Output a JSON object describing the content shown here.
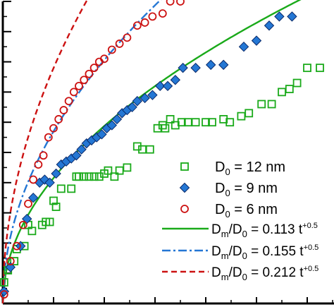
{
  "chart_data": {
    "type": "scatter",
    "title": "",
    "xlabel": "",
    "ylabel": "",
    "xlim": [
      0,
      13
    ],
    "ylim": [
      0,
      1.0
    ],
    "grid": false,
    "legend_position": "bottom-right",
    "x_ticks": [
      0,
      2,
      4,
      6,
      8,
      10,
      12
    ],
    "y_ticks": [
      0,
      0.1,
      0.2,
      0.3,
      0.4,
      0.5,
      0.6,
      0.7,
      0.8,
      0.9,
      1.0
    ],
    "series": [
      {
        "name": "12 nm",
        "kind": "points",
        "marker": "open-square",
        "color": "#1aaa1a",
        "points": [
          [
            0.05,
            0.07
          ],
          [
            0.2,
            0.11
          ],
          [
            0.45,
            0.14
          ],
          [
            0.55,
            0.18
          ],
          [
            0.85,
            0.19
          ],
          [
            1.0,
            0.26
          ],
          [
            1.15,
            0.24
          ],
          [
            1.55,
            0.26
          ],
          [
            1.7,
            0.27
          ],
          [
            1.85,
            0.27
          ],
          [
            2.0,
            0.34
          ],
          [
            2.1,
            0.32
          ],
          [
            2.3,
            0.38
          ],
          [
            2.7,
            0.38
          ],
          [
            2.9,
            0.42
          ],
          [
            3.0,
            0.42
          ],
          [
            3.2,
            0.42
          ],
          [
            3.4,
            0.42
          ],
          [
            3.6,
            0.42
          ],
          [
            3.8,
            0.42
          ],
          [
            4.0,
            0.43
          ],
          [
            4.15,
            0.44
          ],
          [
            4.4,
            0.42
          ],
          [
            4.6,
            0.44
          ],
          [
            4.9,
            0.45
          ],
          [
            5.3,
            0.52
          ],
          [
            5.5,
            0.51
          ],
          [
            5.8,
            0.51
          ],
          [
            6.1,
            0.58
          ],
          [
            6.3,
            0.59
          ],
          [
            6.4,
            0.58
          ],
          [
            6.6,
            0.61
          ],
          [
            6.8,
            0.59
          ],
          [
            7.05,
            0.6
          ],
          [
            7.3,
            0.6
          ],
          [
            7.6,
            0.6
          ],
          [
            8.0,
            0.6
          ],
          [
            8.25,
            0.6
          ],
          [
            8.7,
            0.61
          ],
          [
            8.95,
            0.6
          ],
          [
            9.4,
            0.62
          ],
          [
            9.7,
            0.63
          ],
          [
            10.2,
            0.66
          ],
          [
            10.6,
            0.66
          ],
          [
            11.0,
            0.7
          ],
          [
            11.3,
            0.71
          ],
          [
            11.6,
            0.73
          ],
          [
            12.0,
            0.78
          ],
          [
            12.5,
            0.78
          ]
        ]
      },
      {
        "name": "9 nm",
        "kind": "points",
        "marker": "filled-diamond",
        "color": "#2477d4",
        "points": [
          [
            0.05,
            0.04
          ],
          [
            0.3,
            0.12
          ],
          [
            0.7,
            0.19
          ],
          [
            0.95,
            0.28
          ],
          [
            1.2,
            0.35
          ],
          [
            1.45,
            0.4
          ],
          [
            1.65,
            0.41
          ],
          [
            1.85,
            0.4
          ],
          [
            2.1,
            0.43
          ],
          [
            2.3,
            0.46
          ],
          [
            2.5,
            0.47
          ],
          [
            2.7,
            0.48
          ],
          [
            2.9,
            0.49
          ],
          [
            3.1,
            0.51
          ],
          [
            3.3,
            0.53
          ],
          [
            3.5,
            0.54
          ],
          [
            3.7,
            0.55
          ],
          [
            3.9,
            0.56
          ],
          [
            4.1,
            0.58
          ],
          [
            4.3,
            0.59
          ],
          [
            4.5,
            0.61
          ],
          [
            4.7,
            0.63
          ],
          [
            4.9,
            0.64
          ],
          [
            5.1,
            0.65
          ],
          [
            5.3,
            0.67
          ],
          [
            5.6,
            0.68
          ],
          [
            5.9,
            0.69
          ],
          [
            6.2,
            0.72
          ],
          [
            6.5,
            0.72
          ],
          [
            6.8,
            0.74
          ],
          [
            7.1,
            0.78
          ],
          [
            7.6,
            0.78
          ],
          [
            8.2,
            0.79
          ],
          [
            8.7,
            0.79
          ],
          [
            9.5,
            0.85
          ],
          [
            10.0,
            0.87
          ],
          [
            10.5,
            0.92
          ],
          [
            10.9,
            0.95
          ],
          [
            11.4,
            0.95
          ]
        ]
      },
      {
        "name": "6 nm",
        "kind": "points",
        "marker": "open-circle",
        "color": "#cc1111",
        "points": [
          [
            0.05,
            0.03
          ],
          [
            0.3,
            0.14
          ],
          [
            0.55,
            0.19
          ],
          [
            0.8,
            0.26
          ],
          [
            1.0,
            0.33
          ],
          [
            1.2,
            0.41
          ],
          [
            1.4,
            0.46
          ],
          [
            1.6,
            0.49
          ],
          [
            1.8,
            0.55
          ],
          [
            2.0,
            0.58
          ],
          [
            2.2,
            0.61
          ],
          [
            2.4,
            0.64
          ],
          [
            2.6,
            0.67
          ],
          [
            2.8,
            0.7
          ],
          [
            3.0,
            0.72
          ],
          [
            3.2,
            0.74
          ],
          [
            3.4,
            0.76
          ],
          [
            3.6,
            0.78
          ],
          [
            3.8,
            0.8
          ],
          [
            4.0,
            0.81
          ],
          [
            4.3,
            0.84
          ],
          [
            4.6,
            0.86
          ],
          [
            4.9,
            0.88
          ],
          [
            5.3,
            0.92
          ],
          [
            5.6,
            0.93
          ],
          [
            5.9,
            0.95
          ],
          [
            6.3,
            0.96
          ],
          [
            6.6,
            1.0
          ],
          [
            7.0,
            1.0
          ]
        ]
      }
    ],
    "fits": [
      {
        "label_prefix": "D",
        "label_sub": "m",
        "label_mid": "/D",
        "label_sub2": "0",
        "label_rest": " = 0.113 t",
        "label_sup": "+0.5",
        "coef": 0.113,
        "style": "solid",
        "color": "#1aaa1a"
      },
      {
        "label_prefix": "D",
        "label_sub": "m",
        "label_mid": "/D",
        "label_sub2": "0",
        "label_rest": " = 0.155 t",
        "label_sup": "+0.5",
        "coef": 0.155,
        "style": "dashdot",
        "color": "#2477d4"
      },
      {
        "label_prefix": "D",
        "label_sub": "m",
        "label_mid": "/D",
        "label_sub2": "0",
        "label_rest": " = 0.212 t",
        "label_sup": "+0.5",
        "coef": 0.212,
        "style": "dashed",
        "color": "#cc1111"
      }
    ],
    "legend": [
      {
        "base": "D",
        "sub": "0",
        "rest": " = 12 nm"
      },
      {
        "base": "D",
        "sub": "0",
        "rest": " = 9 nm"
      },
      {
        "base": "D",
        "sub": "0",
        "rest": " = 6 nm"
      }
    ]
  }
}
